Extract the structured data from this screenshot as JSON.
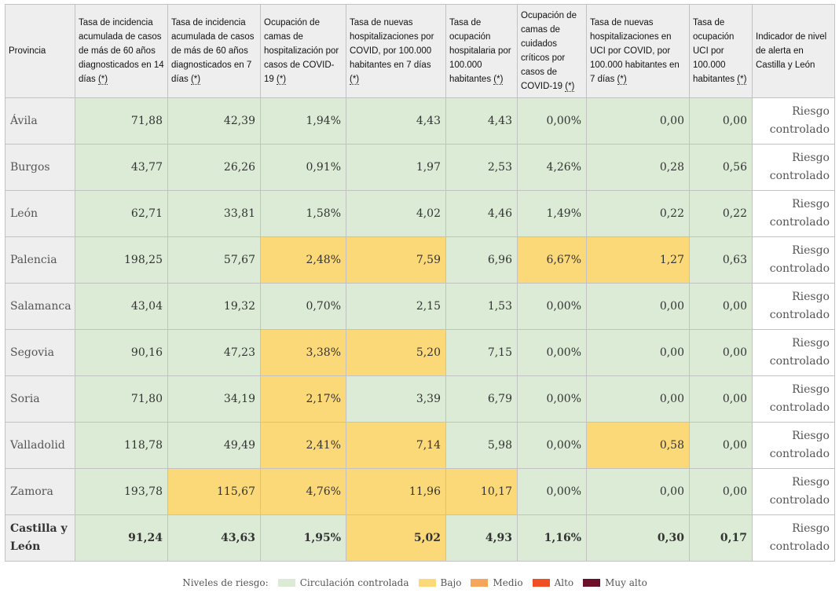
{
  "table": {
    "headers": [
      {
        "text": "Provincia",
        "ast": ""
      },
      {
        "text": "Tasa de incidencia acumulada de casos de más de 60 años diagnosticados en 14 días ",
        "ast": "(*)"
      },
      {
        "text": "Tasa de incidencia acumulada de casos de más de 60 años diagnosticados en 7 días ",
        "ast": "(*)"
      },
      {
        "text": "Ocupación de camas de hospitalización por casos de COVID-19 ",
        "ast": "(*)"
      },
      {
        "text": "Tasa de nuevas hospitalizaciones por COVID, por 100.000 habitantes en 7 días ",
        "ast": "(*)"
      },
      {
        "text": "Tasa de ocupación hospitalaria por 100.000 habitantes ",
        "ast": "(*)"
      },
      {
        "text": "Ocupación de camas de cuidados críticos por casos de COVID-19 ",
        "ast": "(*)"
      },
      {
        "text": "Tasa de nuevas hospitalizaciones en UCI por COVID, por 100.000 habitantes en 7 días ",
        "ast": "(*)"
      },
      {
        "text": "Tasa de ocupación UCI por 100.000 habitantes ",
        "ast": "(*)"
      },
      {
        "text": "Indicador de nivel de alerta en Castilla y León",
        "ast": ""
      }
    ],
    "rows": [
      {
        "provincia": "Ávila",
        "values": [
          "71,88",
          "42,39",
          "1,94%",
          "4,43",
          "4,43",
          "0,00%",
          "0,00",
          "0,00"
        ],
        "levels": [
          "v",
          "v",
          "v",
          "v",
          "v",
          "v",
          "v",
          "v"
        ],
        "indicador": "Riesgo controlado"
      },
      {
        "provincia": "Burgos",
        "values": [
          "43,77",
          "26,26",
          "0,91%",
          "1,97",
          "2,53",
          "4,26%",
          "0,28",
          "0,56"
        ],
        "levels": [
          "v",
          "v",
          "v",
          "v",
          "v",
          "v",
          "v",
          "v"
        ],
        "indicador": "Riesgo controlado"
      },
      {
        "provincia": "León",
        "values": [
          "62,71",
          "33,81",
          "1,58%",
          "4,02",
          "4,46",
          "1,49%",
          "0,22",
          "0,22"
        ],
        "levels": [
          "v",
          "v",
          "v",
          "v",
          "v",
          "v",
          "v",
          "v"
        ],
        "indicador": "Riesgo controlado"
      },
      {
        "provincia": "Palencia",
        "values": [
          "198,25",
          "57,67",
          "2,48%",
          "7,59",
          "6,96",
          "6,67%",
          "1,27",
          "0,63"
        ],
        "levels": [
          "v",
          "v",
          "a",
          "a",
          "v",
          "a",
          "a",
          "v"
        ],
        "indicador": "Riesgo controlado"
      },
      {
        "provincia": "Salamanca",
        "values": [
          "43,04",
          "19,32",
          "0,70%",
          "2,15",
          "1,53",
          "0,00%",
          "0,00",
          "0,00"
        ],
        "levels": [
          "v",
          "v",
          "v",
          "v",
          "v",
          "v",
          "v",
          "v"
        ],
        "indicador": "Riesgo controlado"
      },
      {
        "provincia": "Segovia",
        "values": [
          "90,16",
          "47,23",
          "3,38%",
          "5,20",
          "7,15",
          "0,00%",
          "0,00",
          "0,00"
        ],
        "levels": [
          "v",
          "v",
          "a",
          "a",
          "v",
          "v",
          "v",
          "v"
        ],
        "indicador": "Riesgo controlado"
      },
      {
        "provincia": "Soria",
        "values": [
          "71,80",
          "34,19",
          "2,17%",
          "3,39",
          "6,79",
          "0,00%",
          "0,00",
          "0,00"
        ],
        "levels": [
          "v",
          "v",
          "a",
          "v",
          "v",
          "v",
          "v",
          "v"
        ],
        "indicador": "Riesgo controlado"
      },
      {
        "provincia": "Valladolid",
        "values": [
          "118,78",
          "49,49",
          "2,41%",
          "7,14",
          "5,98",
          "0,00%",
          "0,58",
          "0,00"
        ],
        "levels": [
          "v",
          "v",
          "a",
          "a",
          "v",
          "v",
          "a",
          "v"
        ],
        "indicador": "Riesgo controlado"
      },
      {
        "provincia": "Zamora",
        "values": [
          "193,78",
          "115,67",
          "4,76%",
          "11,96",
          "10,17",
          "0,00%",
          "0,00",
          "0,00"
        ],
        "levels": [
          "v",
          "a",
          "a",
          "a",
          "a",
          "v",
          "v",
          "v"
        ],
        "indicador": "Riesgo controlado"
      },
      {
        "provincia": "Castilla y León",
        "values": [
          "91,24",
          "43,63",
          "1,95%",
          "5,02",
          "4,93",
          "1,16%",
          "0,30",
          "0,17"
        ],
        "levels": [
          "v",
          "v",
          "v",
          "a",
          "v",
          "v",
          "v",
          "v"
        ],
        "indicador": "Riesgo controlado",
        "total": true
      }
    ]
  },
  "legend": {
    "title": "Niveles de riesgo:",
    "items": [
      {
        "label": "Circulación controlada",
        "color": "#dcebd6"
      },
      {
        "label": "Bajo",
        "color": "#fcd978"
      },
      {
        "label": "Medio",
        "color": "#f5a65b"
      },
      {
        "label": "Alto",
        "color": "#f04e23"
      },
      {
        "label": "Muy alto",
        "color": "#6b0f2a"
      }
    ]
  }
}
